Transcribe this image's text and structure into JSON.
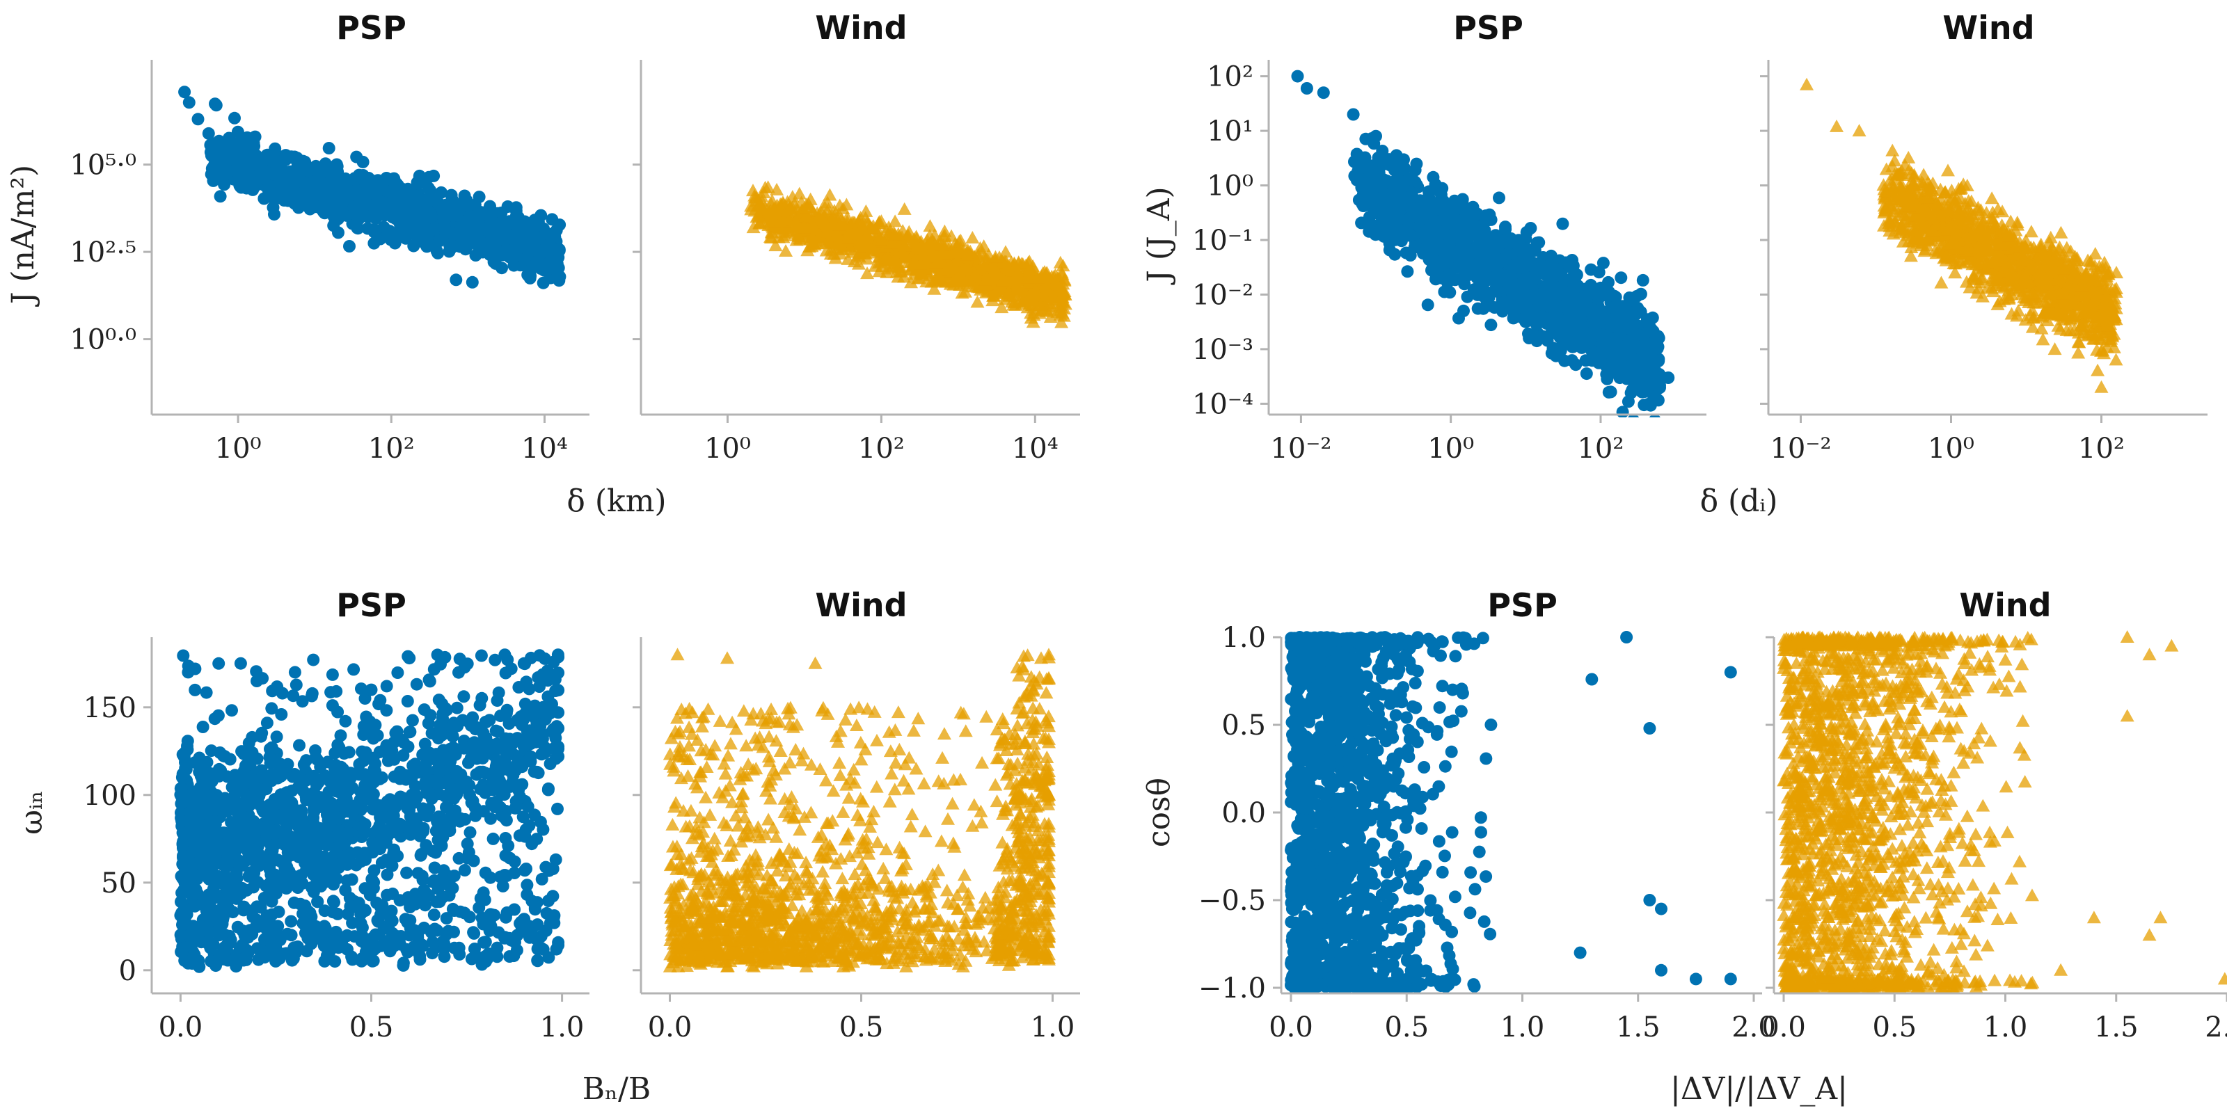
{
  "colors": {
    "psp": "#0072b2",
    "wind": "#e69f00",
    "axis": "#b3b3b3",
    "text": "#222222"
  },
  "chart_data": [
    {
      "id": "A",
      "type": "scatter",
      "xlabel": "δ (km)",
      "ylabel": "J (nA/m²)",
      "xscale": "log",
      "yscale": "log",
      "xlim": [
        0.1,
        30000
      ],
      "ylim": [
        0.01,
        100000000
      ],
      "xticks": [
        1,
        100,
        10000
      ],
      "xtick_labels": [
        "10⁰",
        "10²",
        "10⁴"
      ],
      "yticks": [
        1,
        316.2,
        100000
      ],
      "ytick_labels": [
        "10⁰·⁰",
        "10²·⁵",
        "10⁵·⁰"
      ],
      "series": [
        {
          "name": "PSP",
          "marker": "circle",
          "color": "#0072b2",
          "trend": {
            "x0": 1,
            "y0": 100000,
            "slope": -0.6,
            "xlogmin": -0.4,
            "xlogmax": 4.2,
            "spread": 0.38
          },
          "points": [
            [
              0.2,
              12000000
            ],
            [
              0.23,
              6000000
            ],
            [
              0.5,
              5500000
            ],
            [
              0.52,
              5000000
            ],
            [
              0.3,
              2000000
            ],
            [
              0.5,
              300000
            ],
            [
              1,
              250000
            ]
          ]
        },
        {
          "name": "Wind",
          "marker": "triangle",
          "color": "#e69f00",
          "trend": {
            "x0": 100,
            "y0": 500,
            "slope": -0.6,
            "xlogmin": 0.3,
            "xlogmax": 4.4,
            "spread": 0.32
          },
          "points": [
            [
              20,
              8000
            ],
            [
              12,
              10000
            ],
            [
              22000,
              3
            ]
          ]
        }
      ],
      "panels": [
        {
          "title": "PSP",
          "series": 0
        },
        {
          "title": "Wind",
          "series": 1
        }
      ]
    },
    {
      "id": "B",
      "type": "scatter",
      "xlabel": "δ (dᵢ)",
      "ylabel": "J (J_A)",
      "xscale": "log",
      "yscale": "log",
      "xlim": [
        0.005,
        2000
      ],
      "ylim": [
        8e-05,
        200
      ],
      "xticks": [
        0.01,
        1,
        100
      ],
      "xtick_labels": [
        "10⁻²",
        "10⁰",
        "10²"
      ],
      "yticks": [
        0.0001,
        0.001,
        0.01,
        0.1,
        1,
        10,
        100
      ],
      "ytick_labels": [
        "10⁻⁴",
        "10⁻³",
        "10⁻²",
        "10⁻¹",
        "10⁰",
        "10¹",
        "10²"
      ],
      "series": [
        {
          "name": "PSP",
          "marker": "circle",
          "color": "#0072b2",
          "trend": {
            "x0": 1,
            "y0": 0.1,
            "slope": -0.82,
            "xlogmin": -1.3,
            "xlogmax": 2.8,
            "spread": 0.42
          },
          "points": [
            [
              0.009,
              100
            ],
            [
              0.012,
              60
            ],
            [
              0.02,
              50
            ],
            [
              0.05,
              20
            ],
            [
              0.1,
              8
            ],
            [
              0.15,
              3
            ],
            [
              600,
              0.0002
            ],
            [
              800,
              0.0003
            ]
          ]
        },
        {
          "name": "Wind",
          "marker": "triangle",
          "color": "#e69f00",
          "trend": {
            "x0": 1,
            "y0": 0.15,
            "slope": -0.72,
            "xlogmin": -0.9,
            "xlogmax": 2.2,
            "spread": 0.36
          },
          "points": [
            [
              0.012,
              70
            ],
            [
              0.03,
              12
            ],
            [
              0.06,
              10
            ],
            [
              100,
              0.0002
            ]
          ]
        }
      ],
      "panels": [
        {
          "title": "PSP",
          "series": 0
        },
        {
          "title": "Wind",
          "series": 1
        }
      ]
    },
    {
      "id": "C",
      "type": "scatter",
      "xlabel": "Bₙ/B",
      "ylabel": "ωᵢₙ",
      "xscale": "linear",
      "yscale": "linear",
      "xlim": [
        -0.05,
        1.05
      ],
      "ylim": [
        -10,
        190
      ],
      "xticks": [
        0,
        0.5,
        1
      ],
      "xtick_labels": [
        "0.0",
        "0.5",
        "1.0"
      ],
      "yticks": [
        0,
        50,
        100,
        150
      ],
      "ytick_labels": [
        "0",
        "50",
        "100",
        "150"
      ],
      "series": [
        {
          "name": "PSP",
          "marker": "circle",
          "color": "#0072b2",
          "points": [
            [
              0.02,
              170
            ],
            [
              0.1,
              175
            ],
            [
              0.2,
              165
            ],
            [
              0.3,
              170
            ],
            [
              0.5,
              160
            ],
            [
              0.9,
              175
            ],
            [
              0.95,
              150
            ],
            [
              0.6,
              20
            ],
            [
              0.8,
              5
            ]
          ]
        },
        {
          "name": "Wind",
          "marker": "triangle",
          "color": "#e69f00",
          "points": [
            [
              0.02,
              180
            ],
            [
              0.15,
              178
            ],
            [
              0.38,
              175
            ],
            [
              0.97,
              178
            ],
            [
              0.95,
              160
            ],
            [
              0.5,
              120
            ],
            [
              0.3,
              90
            ]
          ]
        }
      ],
      "panels": [
        {
          "title": "PSP",
          "series": 0
        },
        {
          "title": "Wind",
          "series": 1
        }
      ]
    },
    {
      "id": "D",
      "type": "scatter",
      "xlabel": "|ΔV|/|ΔV_A|",
      "ylabel": "cosθ",
      "xscale": "linear",
      "yscale": "linear",
      "xlim": [
        0,
        2.0
      ],
      "ylim": [
        -1.0,
        1.0
      ],
      "xticks": [
        0,
        0.5,
        1,
        1.5,
        2
      ],
      "xtick_labels": [
        "0.0",
        "0.5",
        "1.0",
        "1.5",
        "2.0"
      ],
      "yticks": [
        -1,
        -0.5,
        0,
        0.5,
        1
      ],
      "ytick_labels": [
        "−1.0",
        "−0.5",
        "0.0",
        "0.5",
        "1.0"
      ],
      "series": [
        {
          "name": "PSP",
          "marker": "circle",
          "color": "#0072b2",
          "points": [
            [
              1.45,
              1.0
            ],
            [
              1.9,
              0.8
            ],
            [
              1.55,
              0.48
            ],
            [
              1.3,
              0.76
            ],
            [
              1.9,
              -0.95
            ],
            [
              1.75,
              -0.95
            ],
            [
              1.6,
              -0.9
            ],
            [
              1.55,
              -0.5
            ],
            [
              1.6,
              -0.55
            ],
            [
              1.25,
              -0.8
            ]
          ]
        },
        {
          "name": "Wind",
          "marker": "triangle",
          "color": "#e69f00",
          "points": [
            [
              1.75,
              0.95
            ],
            [
              1.55,
              1.0
            ],
            [
              1.65,
              0.9
            ],
            [
              1.7,
              -0.6
            ],
            [
              1.65,
              -0.7
            ],
            [
              1.25,
              -0.9
            ],
            [
              1.4,
              -0.6
            ],
            [
              1.55,
              0.55
            ],
            [
              1.99,
              -0.95
            ]
          ]
        }
      ],
      "panels": [
        {
          "title": "PSP",
          "series": 0
        },
        {
          "title": "Wind",
          "series": 1
        }
      ]
    }
  ]
}
